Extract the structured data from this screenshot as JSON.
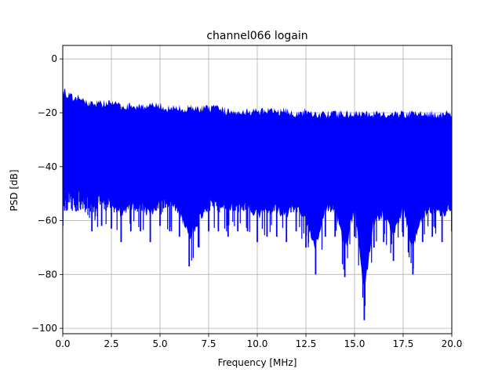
{
  "chart_data": {
    "type": "line",
    "title": "channel066 logain",
    "xlabel": "Frequency [MHz]",
    "ylabel": "PSD [dB]",
    "xlim": [
      0,
      20
    ],
    "ylim": [
      -102,
      5
    ],
    "xticks": [
      0.0,
      2.5,
      5.0,
      7.5,
      10.0,
      12.5,
      15.0,
      17.5,
      20.0
    ],
    "xtick_labels": [
      "0.0",
      "2.5",
      "5.0",
      "7.5",
      "10.0",
      "12.5",
      "15.0",
      "17.5",
      "20.0"
    ],
    "yticks": [
      0,
      -20,
      -40,
      -60,
      -80,
      -100
    ],
    "ytick_labels": [
      "0",
      "−20",
      "−40",
      "−60",
      "−80",
      "−100"
    ],
    "grid": true,
    "series": [
      {
        "color": "#0000ff",
        "x": [
          0.0,
          0.05,
          0.1,
          0.2,
          0.3,
          0.5,
          0.8,
          1.0,
          1.5,
          2.0,
          2.5,
          3.0,
          3.5,
          4.0,
          4.5,
          5.0,
          5.5,
          6.0,
          6.5,
          7.0,
          7.5,
          8.0,
          8.5,
          9.0,
          9.5,
          10.0,
          10.5,
          11.0,
          11.5,
          12.0,
          12.5,
          13.0,
          13.5,
          14.0,
          14.5,
          15.0,
          15.5,
          16.0,
          16.5,
          17.0,
          17.5,
          18.0,
          18.5,
          19.0,
          19.5,
          20.0
        ],
        "upper": [
          -11,
          -14,
          -13,
          -15,
          -15,
          -16,
          -16,
          -17,
          -18,
          -18,
          -18,
          -19,
          -19,
          -19,
          -19,
          -19,
          -20,
          -20,
          -20,
          -20,
          -20,
          -20,
          -21,
          -21,
          -21,
          -21,
          -21,
          -21,
          -21,
          -22,
          -21,
          -22,
          -22,
          -22,
          -22,
          -22,
          -22,
          -22,
          -22,
          -22,
          -22,
          -22,
          -22,
          -22,
          -22,
          -22
        ],
        "lower": [
          -62,
          -58,
          -57,
          -56,
          -57,
          -57,
          -58,
          -60,
          -64,
          -62,
          -63,
          -68,
          -64,
          -64,
          -68,
          -62,
          -64,
          -66,
          -77,
          -70,
          -64,
          -64,
          -66,
          -64,
          -64,
          -68,
          -66,
          -66,
          -68,
          -64,
          -70,
          -80,
          -66,
          -66,
          -81,
          -66,
          -97,
          -70,
          -68,
          -75,
          -66,
          -80,
          -68,
          -66,
          -68,
          -64
        ]
      }
    ]
  }
}
